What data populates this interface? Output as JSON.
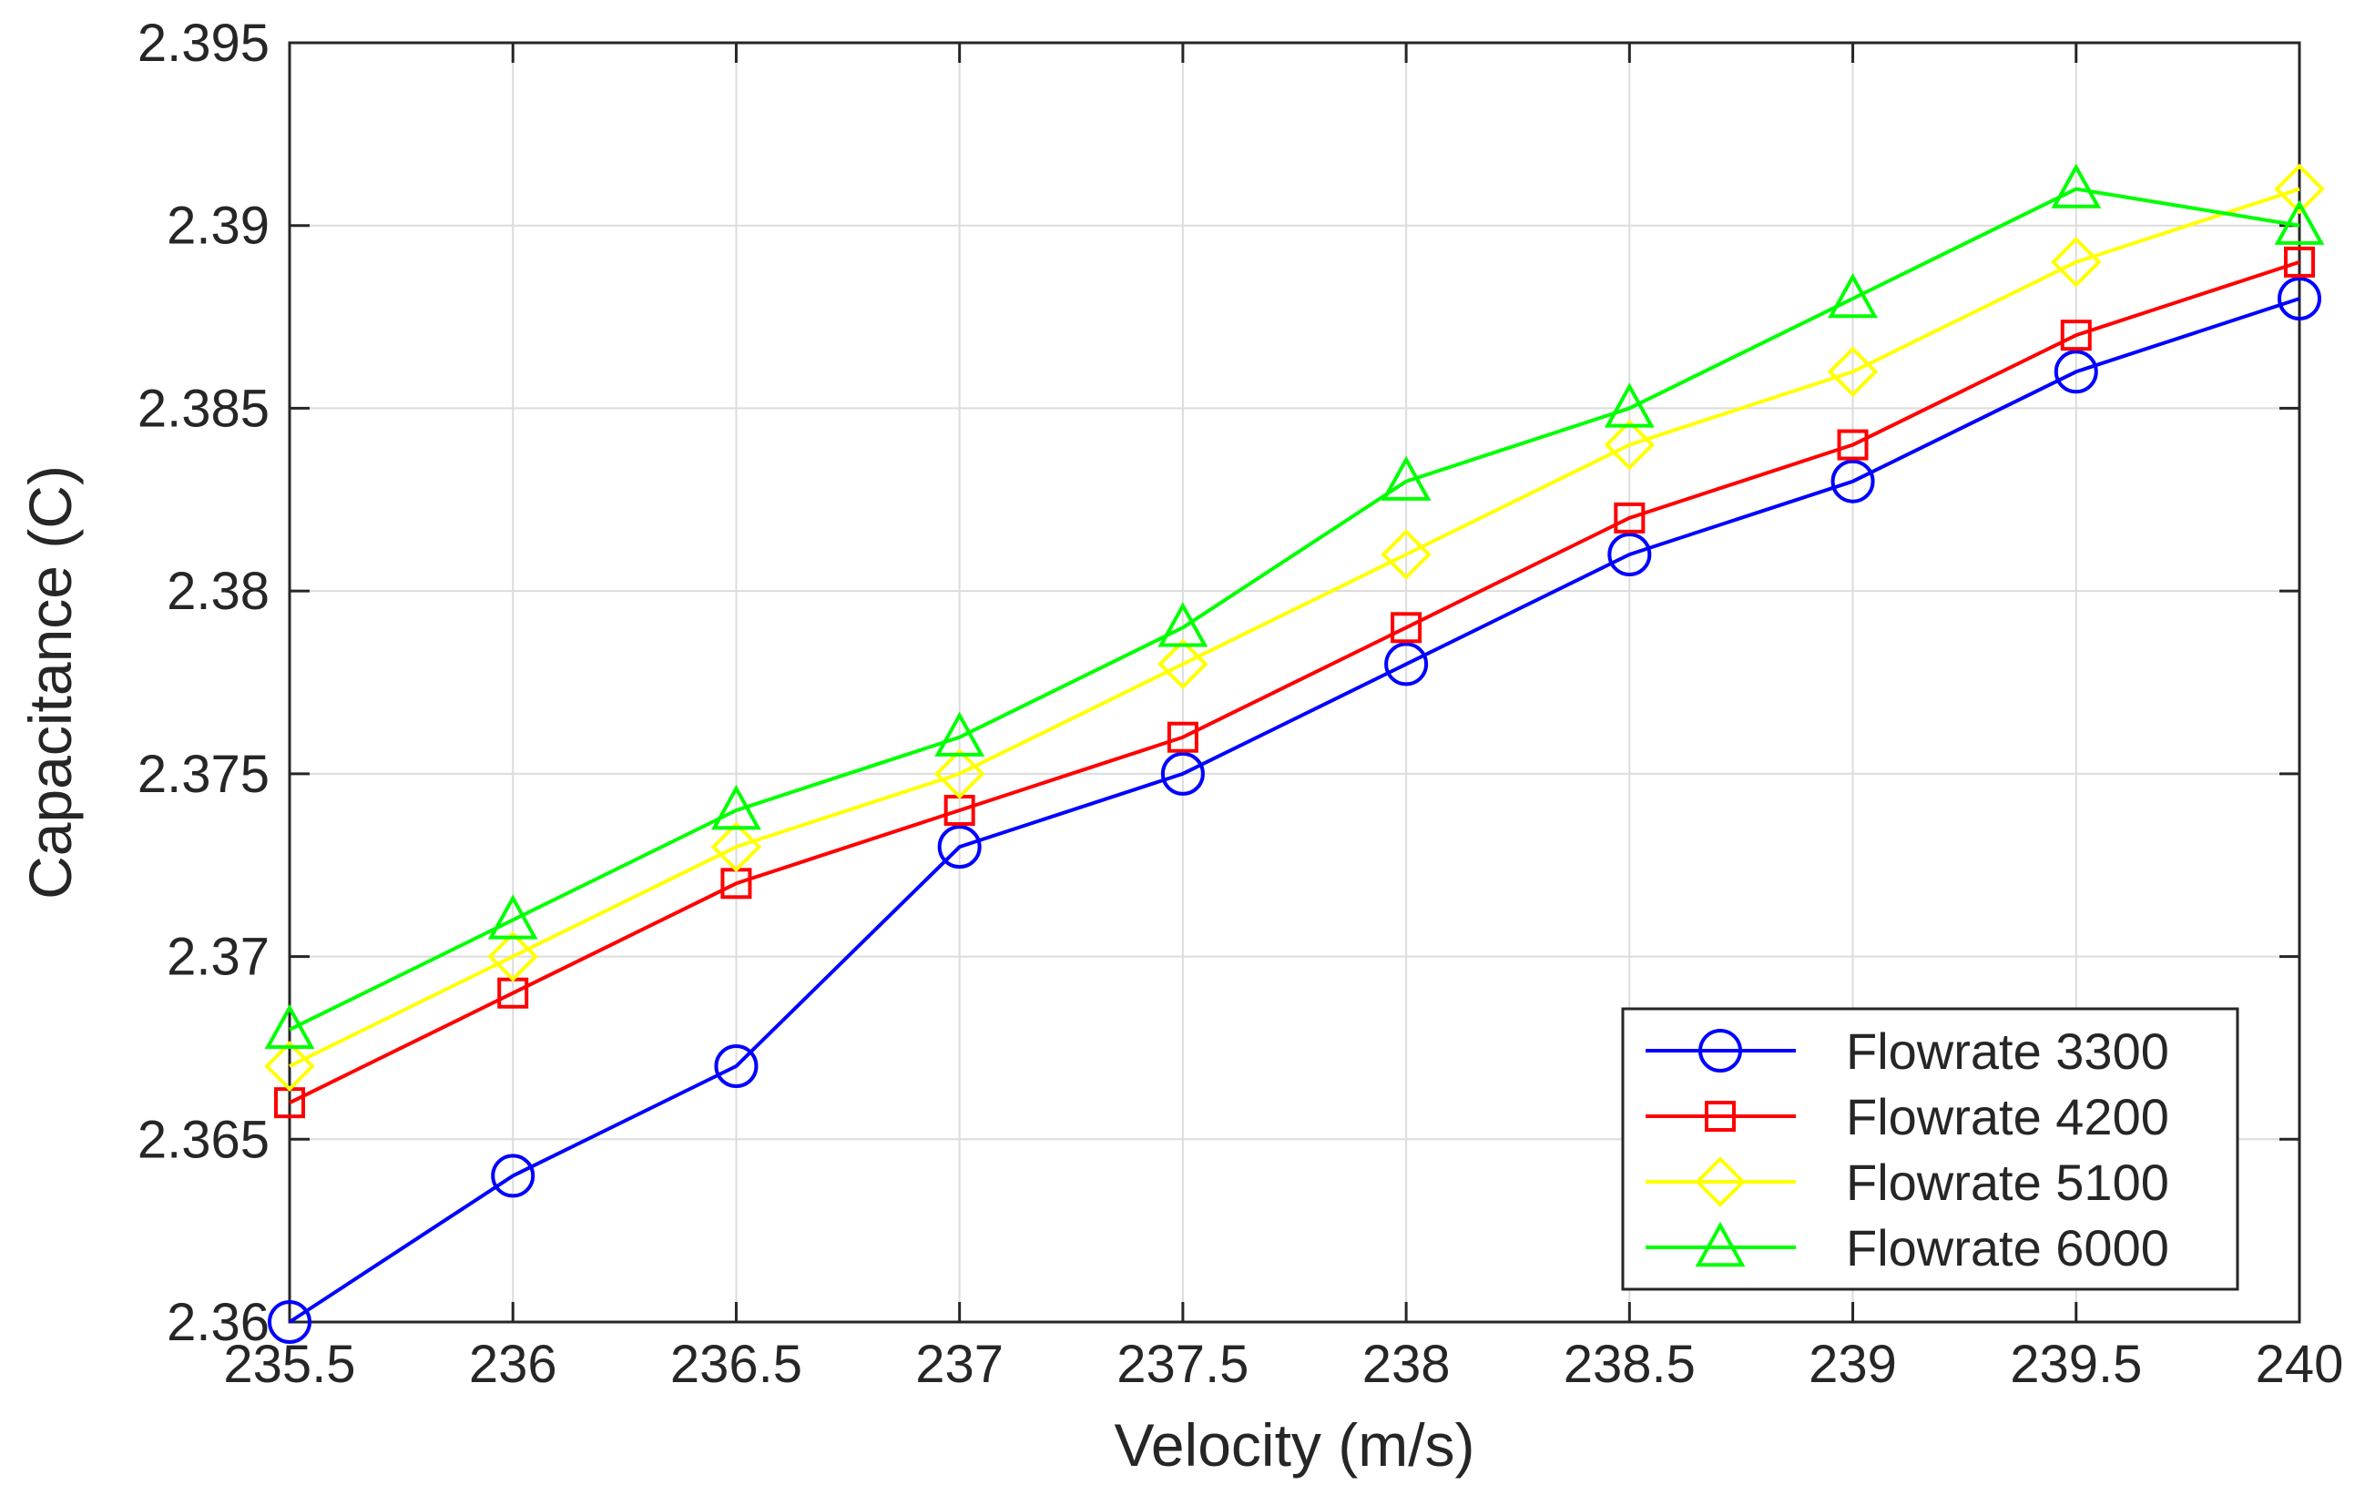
{
  "chart_data": {
    "type": "line",
    "xlabel": "Velocity (m/s)",
    "ylabel": "Capacitance (C)",
    "xlim": [
      235.5,
      240
    ],
    "ylim": [
      2.36,
      2.395
    ],
    "xticks": [
      235.5,
      236,
      236.5,
      237,
      237.5,
      238,
      238.5,
      239,
      239.5,
      240
    ],
    "xtick_labels": [
      "235.5",
      "236",
      "236.5",
      "237",
      "237.5",
      "238",
      "238.5",
      "239",
      "239.5",
      "240"
    ],
    "yticks": [
      2.36,
      2.365,
      2.37,
      2.375,
      2.38,
      2.385,
      2.39,
      2.395
    ],
    "ytick_labels": [
      "2.36",
      "2.365",
      "2.37",
      "2.375",
      "2.38",
      "2.385",
      "2.39",
      "2.395"
    ],
    "grid": true,
    "legend_position": "bottom-right",
    "x": [
      235.5,
      236,
      236.5,
      237,
      237.5,
      238,
      238.5,
      239,
      239.5,
      240
    ],
    "series": [
      {
        "name": "Flowrate 3300",
        "color": "#0000ff",
        "marker": "circle",
        "values": [
          2.36,
          2.364,
          2.367,
          2.373,
          2.375,
          2.378,
          2.381,
          2.383,
          2.386,
          2.388
        ]
      },
      {
        "name": "Flowrate 4200",
        "color": "#ff0000",
        "marker": "square",
        "values": [
          2.366,
          2.369,
          2.372,
          2.374,
          2.376,
          2.379,
          2.382,
          2.384,
          2.387,
          2.389
        ]
      },
      {
        "name": "Flowrate 5100",
        "color": "#ffff00",
        "marker": "diamond",
        "values": [
          2.367,
          2.37,
          2.373,
          2.375,
          2.378,
          2.381,
          2.384,
          2.386,
          2.389,
          2.391
        ]
      },
      {
        "name": "Flowrate 6000",
        "color": "#00ff00",
        "marker": "triangle",
        "values": [
          2.368,
          2.371,
          2.374,
          2.376,
          2.379,
          2.383,
          2.385,
          2.388,
          2.391,
          2.39
        ]
      }
    ]
  }
}
